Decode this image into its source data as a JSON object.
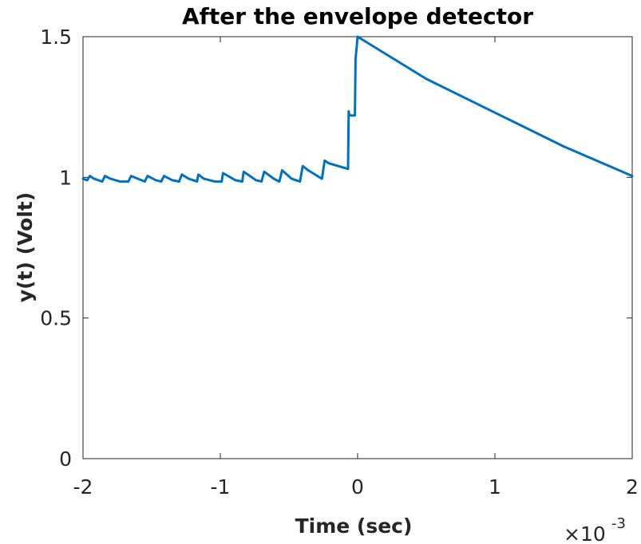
{
  "chart_data": {
    "type": "line",
    "title": "After the envelope detector",
    "xlabel": "Time (sec)",
    "ylabel": "y(t)  (Volt)",
    "x_multiplier": {
      "base": "×10",
      "exponent": "-3"
    },
    "xlim": [
      -2,
      2
    ],
    "ylim": [
      0,
      1.5
    ],
    "xticks": [
      -2,
      -1,
      0,
      1,
      2
    ],
    "xtick_labels": [
      "-2",
      "-1",
      "0",
      "1",
      "2"
    ],
    "yticks": [
      0,
      0.5,
      1,
      1.5
    ],
    "ytick_labels": [
      "0",
      "0.5",
      "1",
      "1.5"
    ],
    "grid": false,
    "series": [
      {
        "color": "#0072BD",
        "x": [
          -2.0,
          -1.97,
          -1.95,
          -1.92,
          -1.86,
          -1.84,
          -1.8,
          -1.73,
          -1.67,
          -1.65,
          -1.6,
          -1.55,
          -1.53,
          -1.47,
          -1.43,
          -1.41,
          -1.35,
          -1.3,
          -1.28,
          -1.23,
          -1.17,
          -1.16,
          -1.12,
          -1.04,
          -0.99,
          -0.98,
          -0.89,
          -0.84,
          -0.83,
          -0.74,
          -0.7,
          -0.68,
          -0.61,
          -0.57,
          -0.55,
          -0.48,
          -0.42,
          -0.4,
          -0.36,
          -0.26,
          -0.24,
          -0.21,
          -0.07,
          -0.065,
          -0.06,
          -0.02,
          -0.015,
          0.0,
          0.5,
          1.0,
          1.5,
          2.0
        ],
        "y": [
          0.995,
          0.99,
          1.005,
          0.995,
          0.985,
          1.005,
          0.995,
          0.985,
          0.985,
          1.005,
          0.995,
          0.985,
          1.005,
          0.99,
          0.985,
          1.005,
          0.99,
          0.985,
          1.01,
          0.995,
          0.985,
          1.01,
          0.995,
          0.985,
          0.985,
          1.015,
          0.99,
          0.985,
          1.02,
          0.99,
          0.985,
          1.02,
          0.995,
          0.985,
          1.025,
          0.995,
          0.985,
          1.04,
          1.025,
          0.995,
          1.06,
          1.05,
          1.03,
          1.235,
          1.22,
          1.22,
          1.42,
          1.5,
          1.35,
          1.23,
          1.11,
          1.005
        ]
      }
    ]
  }
}
